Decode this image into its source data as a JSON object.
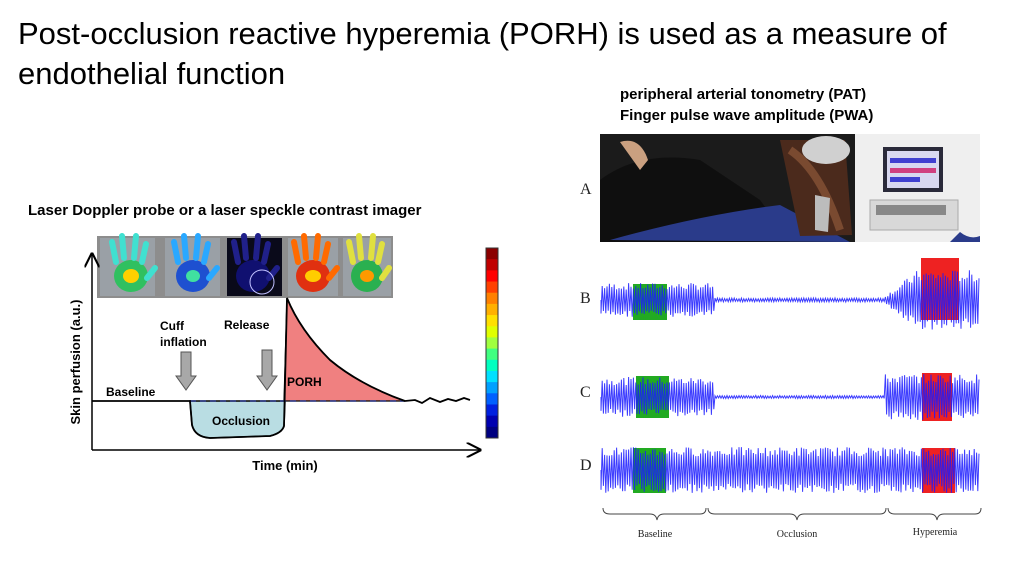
{
  "slide": {
    "title": "Post-occlusion reactive hyperemia (PORH) is used as a measure of endothelial function"
  },
  "left_panel": {
    "heading": "Laser Doppler probe or a laser speckle contrast imager",
    "y_axis_label": "Skin perfusion (a.u.)",
    "x_axis_label": "Time (min)",
    "annotations": {
      "baseline": "Baseline",
      "cuff_line1": "Cuff",
      "cuff_line2": "inflation",
      "release": "Release",
      "occlusion": "Occlusion",
      "porh": "PORH"
    },
    "colors": {
      "porh_fill": "#f08080",
      "occlusion_fill": "#b9dde3",
      "dashed": "#2b3a8c"
    },
    "colorbar": [
      "#8b0000",
      "#c00000",
      "#ff0000",
      "#ff4000",
      "#ff8000",
      "#ffb000",
      "#ffe000",
      "#e0ff00",
      "#a0ff40",
      "#40ff80",
      "#00ffc0",
      "#00e0ff",
      "#00a0ff",
      "#0060ff",
      "#0020e0",
      "#0000b0",
      "#000080"
    ]
  },
  "right_panel": {
    "heading_line1": "peripheral arterial tonometry (PAT)",
    "heading_line2": "Finger pulse wave amplitude (PWA)",
    "row_labels": [
      "A",
      "B",
      "C",
      "D"
    ],
    "phase_labels": {
      "baseline": "Baseline",
      "occlusion": "Occlusion",
      "hyperemia": "Hyperemia"
    },
    "colors": {
      "trace": "#1a1aff",
      "baseline_band": "#22aa22",
      "hyperemia_band": "#ee2222"
    }
  }
}
